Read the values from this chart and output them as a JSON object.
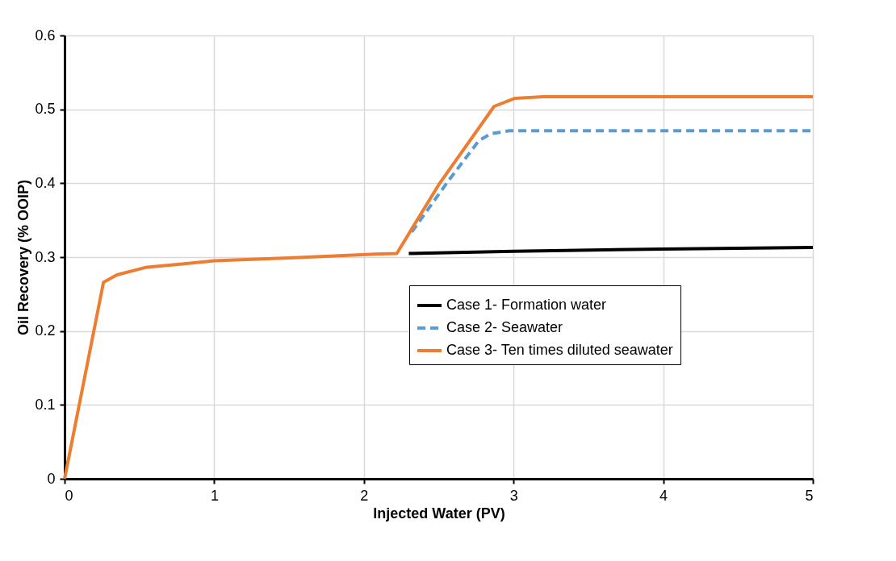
{
  "chart_data": {
    "type": "line",
    "xlabel": "Injected Water (PV)",
    "ylabel": "Oil Recovery (% OOIP)",
    "xlim": [
      0,
      5
    ],
    "xticks": [
      0,
      1,
      2,
      3,
      4,
      5
    ],
    "ylim": [
      0,
      0.6
    ],
    "yticks": [
      0,
      0.1,
      0.2,
      0.3,
      0.4,
      0.5,
      0.6
    ],
    "grid": true,
    "legend": "bottom right",
    "series": [
      {
        "name": "Case 1- Formation water",
        "color": "#000000",
        "line_style": "solid",
        "x": [
          2.3,
          3,
          4,
          5
        ],
        "values": [
          0.305,
          0.308,
          0.311,
          0.313
        ]
      },
      {
        "name": "Case 2- Seawater",
        "color": "#5b9bd5",
        "line_style": "dashed",
        "x": [
          2.32,
          2.56,
          2.77,
          2.85,
          2.97,
          4,
          5
        ],
        "values": [
          0.334,
          0.402,
          0.458,
          0.467,
          0.471,
          0.471,
          0.471
        ]
      },
      {
        "name": "Case 3- Ten times diluted seawater",
        "color": "#ed7d31",
        "line_style": "solid",
        "x": [
          0,
          0.26,
          0.35,
          0.54,
          0.8,
          1.0,
          1.5,
          2.08,
          2.22,
          2.5,
          2.87,
          3.01,
          3.2,
          4,
          5
        ],
        "values": [
          0,
          0.266,
          0.276,
          0.286,
          0.291,
          0.295,
          0.299,
          0.304,
          0.305,
          0.398,
          0.504,
          0.515,
          0.517,
          0.517,
          0.517
        ]
      }
    ]
  }
}
